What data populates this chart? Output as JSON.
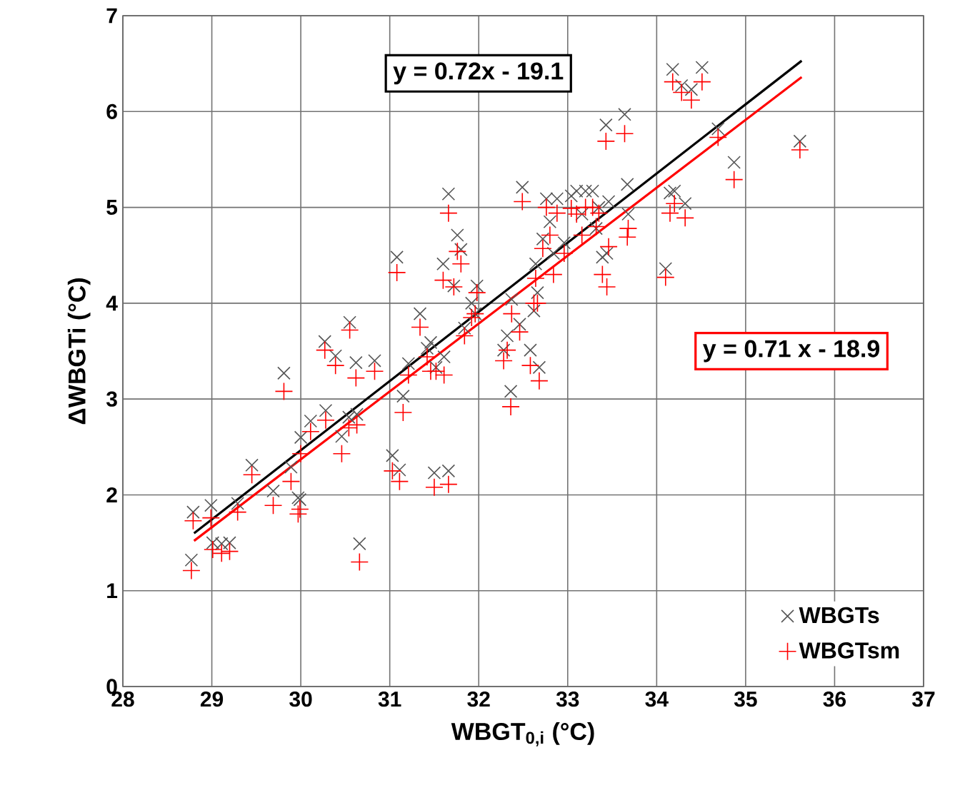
{
  "chart_data": {
    "type": "scatter",
    "xlabel": "WBGT$_{0,i}$ (°C)",
    "ylabel": "ΔWBGTi (°C)",
    "xlim": [
      28,
      37
    ],
    "ylim": [
      0,
      7
    ],
    "xticks": [
      28,
      29,
      30,
      31,
      32,
      33,
      34,
      35,
      36,
      37
    ],
    "yticks": [
      0,
      1,
      2,
      3,
      4,
      5,
      6,
      7
    ],
    "grid": true,
    "legend": "bottom right",
    "annotations": [
      "y = 0.72x - 19.1",
      "y = 0.71 x - 18.9"
    ],
    "series": [
      {
        "name": "WBGTs",
        "color": "#555555",
        "marker": "cross",
        "x": [
          28.77,
          28.79,
          28.99,
          29.01,
          29.11,
          29.2,
          29.29,
          29.45,
          29.69,
          29.81,
          29.89,
          29.97,
          29.99,
          30.0,
          30.11,
          30.27,
          30.28,
          30.39,
          30.46,
          30.54,
          30.55,
          30.62,
          30.63,
          30.66,
          30.83,
          31.03,
          31.08,
          31.11,
          31.15,
          31.21,
          31.34,
          31.42,
          31.46,
          31.5,
          31.52,
          31.6,
          31.61,
          31.66,
          31.66,
          31.72,
          31.76,
          31.8,
          31.84,
          31.92,
          31.96,
          31.98,
          32.28,
          32.32,
          32.36,
          32.37,
          32.46,
          32.49,
          32.58,
          32.62,
          32.64,
          32.66,
          32.68,
          32.72,
          32.76,
          32.8,
          32.84,
          32.88,
          32.96,
          33.04,
          33.1,
          33.16,
          33.2,
          33.28,
          33.32,
          33.35,
          33.39,
          33.43,
          33.44,
          33.46,
          33.64,
          33.67,
          33.68,
          34.1,
          34.15,
          34.18,
          34.2,
          34.28,
          34.32,
          34.39,
          34.51,
          34.69,
          34.87,
          35.61
        ],
        "values": [
          1.32,
          1.82,
          1.89,
          1.5,
          1.49,
          1.5,
          1.91,
          2.31,
          2.04,
          3.27,
          2.29,
          1.97,
          1.95,
          2.6,
          2.77,
          3.6,
          2.88,
          3.45,
          2.61,
          2.81,
          3.8,
          3.38,
          2.84,
          1.49,
          3.4,
          2.41,
          4.48,
          2.26,
          3.03,
          3.37,
          3.89,
          3.53,
          3.59,
          2.23,
          3.33,
          4.41,
          3.44,
          2.25,
          5.14,
          4.18,
          4.71,
          4.56,
          3.74,
          4.0,
          3.89,
          4.18,
          3.51,
          3.66,
          3.08,
          4.04,
          3.78,
          5.21,
          3.51,
          3.92,
          4.41,
          4.11,
          3.33,
          4.67,
          5.09,
          4.85,
          4.52,
          5.09,
          4.63,
          5.12,
          5.17,
          4.93,
          5.17,
          5.17,
          4.78,
          5.0,
          4.48,
          5.86,
          4.52,
          5.06,
          5.97,
          5.24,
          4.93,
          4.36,
          5.15,
          6.44,
          5.17,
          6.27,
          5.04,
          6.23,
          6.46,
          5.82,
          5.47,
          5.69
        ]
      },
      {
        "name": "WBGTsm",
        "color": "#ff0000",
        "marker": "plus",
        "x": [
          28.77,
          28.79,
          28.99,
          29.01,
          29.11,
          29.2,
          29.29,
          29.45,
          29.69,
          29.81,
          29.89,
          29.97,
          29.99,
          30.0,
          30.11,
          30.27,
          30.28,
          30.39,
          30.46,
          30.54,
          30.55,
          30.62,
          30.63,
          30.66,
          30.83,
          31.03,
          31.08,
          31.11,
          31.15,
          31.21,
          31.34,
          31.42,
          31.46,
          31.5,
          31.52,
          31.6,
          31.61,
          31.66,
          31.66,
          31.72,
          31.76,
          31.8,
          31.84,
          31.92,
          31.96,
          31.98,
          32.28,
          32.32,
          32.36,
          32.37,
          32.46,
          32.49,
          32.58,
          32.62,
          32.64,
          32.66,
          32.68,
          32.72,
          32.76,
          32.8,
          32.84,
          32.88,
          32.96,
          33.04,
          33.1,
          33.16,
          33.2,
          33.28,
          33.32,
          33.35,
          33.39,
          33.43,
          33.44,
          33.46,
          33.64,
          33.67,
          33.68,
          34.1,
          34.15,
          34.18,
          34.2,
          34.28,
          34.32,
          34.39,
          34.51,
          34.69,
          34.87,
          35.61
        ],
        "values": [
          1.21,
          1.73,
          1.76,
          1.43,
          1.39,
          1.41,
          1.82,
          2.21,
          1.89,
          3.08,
          2.14,
          1.8,
          1.85,
          2.43,
          2.66,
          3.51,
          2.78,
          3.35,
          2.43,
          2.7,
          3.72,
          3.22,
          2.73,
          1.3,
          3.29,
          2.25,
          4.32,
          2.14,
          2.86,
          3.25,
          3.75,
          3.44,
          3.29,
          2.08,
          3.29,
          4.24,
          3.25,
          2.11,
          4.94,
          4.17,
          4.54,
          4.41,
          3.66,
          3.85,
          3.89,
          4.11,
          3.4,
          3.51,
          2.92,
          3.89,
          3.7,
          5.06,
          3.35,
          4.0,
          4.26,
          4.0,
          3.19,
          4.57,
          5.0,
          4.71,
          4.3,
          4.94,
          4.52,
          4.99,
          4.93,
          4.71,
          5.0,
          5.0,
          4.8,
          4.94,
          4.3,
          5.69,
          4.17,
          4.59,
          5.77,
          4.69,
          4.78,
          4.27,
          4.94,
          6.31,
          5.04,
          6.2,
          4.89,
          6.12,
          6.31,
          5.73,
          5.29,
          5.6
        ]
      },
      {
        "type": "line",
        "color": "#000000",
        "marker": "none",
        "line_style": "solid",
        "x": [
          28.8,
          35.63
        ],
        "values": [
          1.6,
          6.53
        ]
      },
      {
        "type": "line",
        "color": "#ff0000",
        "marker": "none",
        "line_style": "solid",
        "x": [
          28.8,
          35.63
        ],
        "values": [
          1.52,
          6.36
        ]
      }
    ]
  }
}
